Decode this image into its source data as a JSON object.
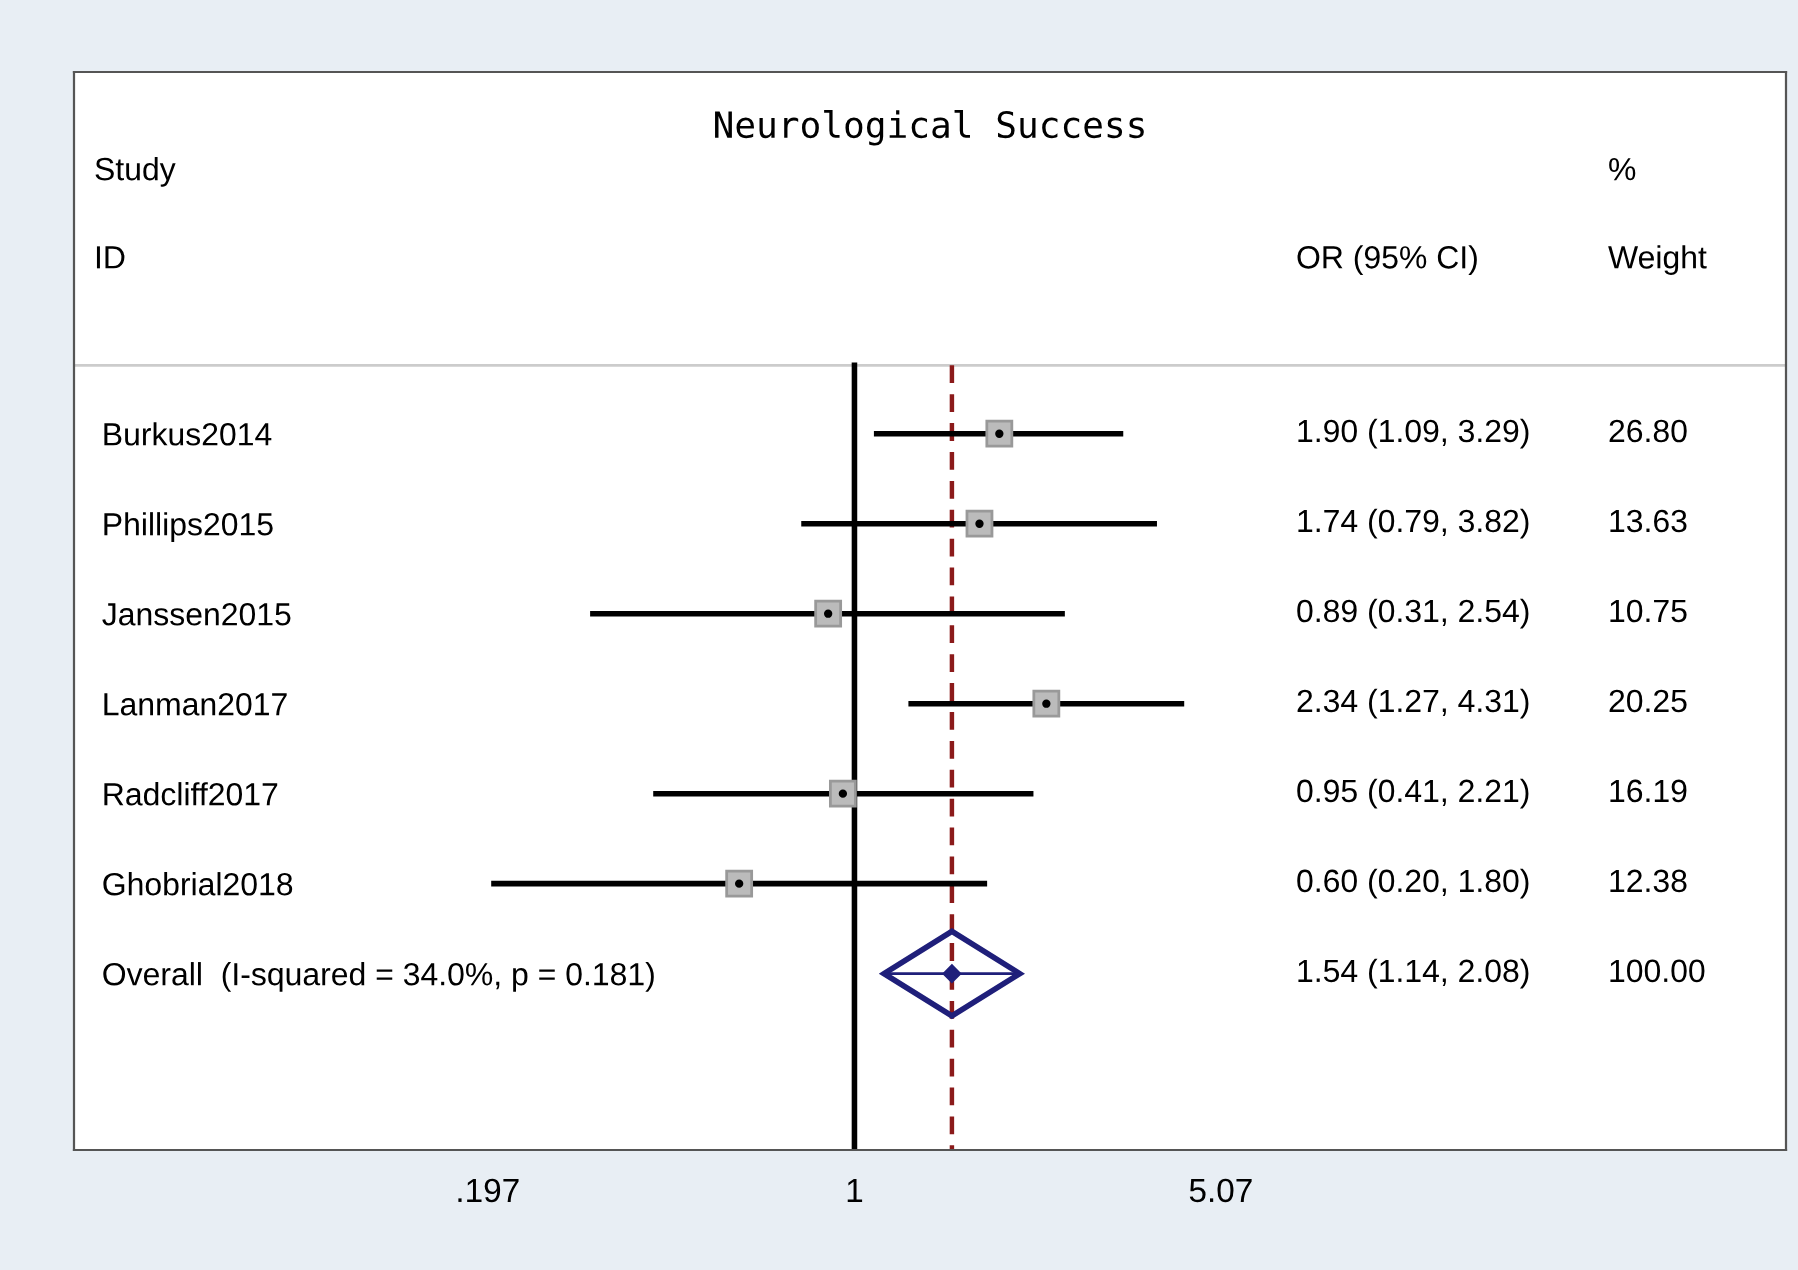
{
  "chart_data": {
    "type": "scatter",
    "title": "Neurological Success",
    "categories": [
      "Burkus2014",
      "Phillips2015",
      "Janssen2015",
      "Lanman2017",
      "Radcliff2017",
      "Ghobrial2018",
      "Overall  (I-squared = 34.0%, p = 0.181)"
    ],
    "series": [
      {
        "color": "#000000",
        "marker": "square",
        "values": [
          1.9,
          1.74,
          0.89,
          2.34,
          0.95,
          0.6,
          null
        ],
        "errors": [
          [
            1.09,
            3.29
          ],
          [
            0.79,
            3.82
          ],
          [
            0.31,
            2.54
          ],
          [
            1.27,
            4.31
          ],
          [
            0.41,
            2.21
          ],
          [
            0.2,
            1.8
          ],
          null
        ]
      },
      {
        "color": "#1f1f7a",
        "marker": "diamond",
        "values": [
          null,
          null,
          null,
          null,
          null,
          null,
          1.54
        ],
        "errors": [
          null,
          null,
          null,
          null,
          null,
          null,
          [
            1.14,
            2.08
          ]
        ]
      }
    ],
    "annotations": [
      "Study",
      "ID",
      "OR (95% CI)",
      "%",
      "Weight",
      "1.90 (1.09, 3.29)",
      "1.74 (0.79, 3.82)",
      "0.89 (0.31, 2.54)",
      "2.34 (1.27, 4.31)",
      "0.95 (0.41, 2.21)",
      "0.60 (0.20, 1.80)",
      "1.54 (1.14, 2.08)",
      "26.80",
      "13.63",
      "10.75",
      "20.25",
      "16.19",
      "12.38",
      "100.00"
    ],
    "log": "x",
    "xlim": [
      0.0315,
      62
    ],
    "xticks": [
      {
        "value": 0.197,
        "label": ".197"
      },
      {
        "value": 1,
        "label": "1"
      },
      {
        "value": 5.07,
        "label": "5.07"
      }
    ],
    "orientation": "horizontal",
    "ref_lines": [
      {
        "axis": "x",
        "value": 1,
        "color": "#000000",
        "line_style": "solid"
      },
      {
        "axis": "x",
        "value": 1.54,
        "color": "#8b1a1a",
        "line_style": "dashed"
      }
    ],
    "grid": false,
    "legend": false
  }
}
